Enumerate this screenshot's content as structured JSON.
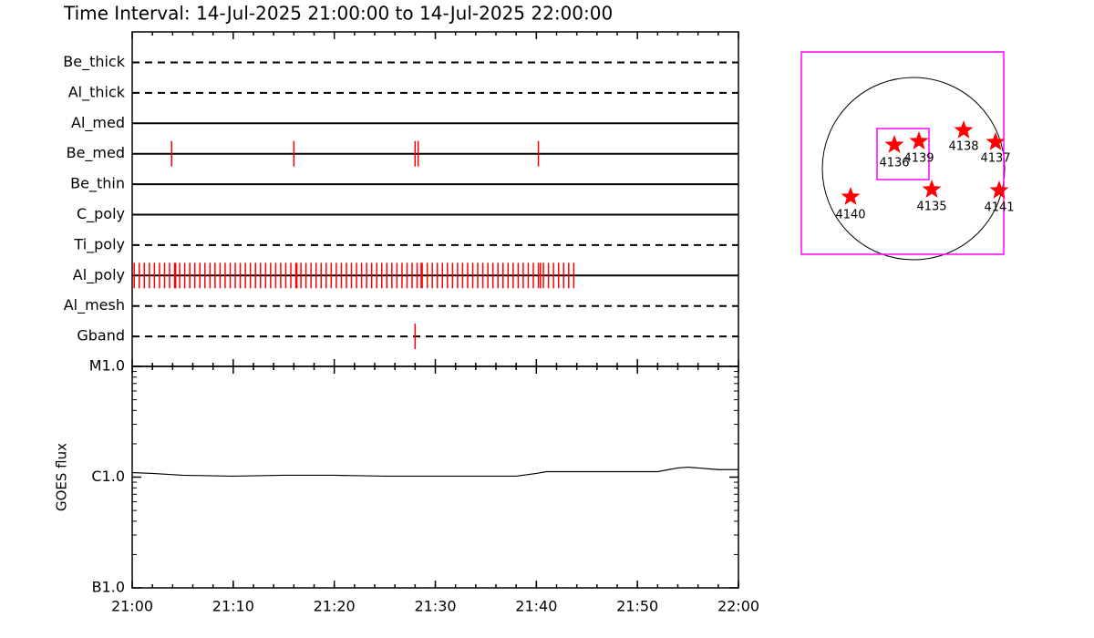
{
  "chart_data": [
    {
      "type": "timeline",
      "title": "Time Interval: 14-Jul-2025 21:00:00 to 14-Jul-2025 22:00:00",
      "color": "#ff0000",
      "xlim": [
        0,
        60
      ],
      "rows": [
        {
          "name": "Be_thick",
          "style": "dashed",
          "times": []
        },
        {
          "name": "Al_thick",
          "style": "dashed",
          "times": []
        },
        {
          "name": "Al_med",
          "style": "solid",
          "times": []
        },
        {
          "name": "Be_med",
          "style": "solid",
          "times": [
            3.9,
            16.0,
            28.0,
            28.3,
            40.2
          ]
        },
        {
          "name": "Be_thin",
          "style": "solid",
          "times": []
        },
        {
          "name": "C_poly",
          "style": "solid",
          "times": []
        },
        {
          "name": "Ti_poly",
          "style": "dashed",
          "times": []
        },
        {
          "name": "Al_poly",
          "style": "solid",
          "times": [
            0.2,
            0.7,
            1.2,
            1.7,
            2.2,
            2.7,
            3.2,
            3.7,
            4.2,
            4.3,
            4.7,
            5.2,
            5.7,
            6.2,
            6.7,
            7.2,
            7.7,
            8.2,
            8.7,
            9.2,
            9.7,
            10.2,
            10.7,
            11.2,
            11.7,
            12.2,
            12.7,
            13.2,
            13.7,
            14.2,
            14.7,
            15.2,
            15.7,
            16.2,
            16.3,
            16.7,
            17.2,
            17.7,
            18.2,
            18.7,
            19.2,
            19.7,
            20.2,
            20.7,
            21.2,
            21.7,
            22.2,
            22.7,
            23.2,
            23.7,
            24.2,
            24.7,
            25.2,
            25.7,
            26.2,
            26.7,
            27.2,
            27.7,
            28.2,
            28.6,
            28.7,
            29.2,
            29.7,
            30.2,
            30.7,
            31.2,
            31.7,
            32.2,
            32.7,
            33.2,
            33.7,
            34.2,
            34.7,
            35.2,
            35.7,
            36.2,
            36.7,
            37.2,
            37.7,
            38.2,
            38.7,
            39.2,
            39.7,
            40.2,
            40.4,
            40.7,
            41.2,
            41.7,
            42.2,
            42.7,
            43.2,
            43.7
          ]
        },
        {
          "name": "Al_mesh",
          "style": "dashed",
          "times": []
        },
        {
          "name": "Gband",
          "style": "dashed",
          "times": [
            28.0
          ]
        }
      ]
    },
    {
      "type": "line",
      "ylabel": "GOES flux",
      "color": "#000000",
      "log_y": true,
      "x": [
        0,
        2,
        5,
        10,
        15,
        20,
        25,
        30,
        35,
        38,
        40,
        41,
        42,
        45,
        50,
        52,
        54,
        55,
        56,
        58,
        60
      ],
      "values": [
        1.1e-06,
        1.08e-06,
        1.04e-06,
        1.02e-06,
        1.04e-06,
        1.04e-06,
        1.02e-06,
        1.02e-06,
        1.02e-06,
        1.02e-06,
        1.08e-06,
        1.12e-06,
        1.12e-06,
        1.12e-06,
        1.12e-06,
        1.12e-06,
        1.21e-06,
        1.23e-06,
        1.21e-06,
        1.17e-06,
        1.17e-06
      ],
      "xlim": [
        0,
        60
      ],
      "xticks": [
        {
          "value": 0,
          "label": "21:00"
        },
        {
          "value": 10,
          "label": "21:10"
        },
        {
          "value": 20,
          "label": "21:20"
        },
        {
          "value": 30,
          "label": "21:30"
        },
        {
          "value": 40,
          "label": "21:40"
        },
        {
          "value": 50,
          "label": "21:50"
        },
        {
          "value": 60,
          "label": "22:00"
        }
      ],
      "ylim": [
        1e-07,
        1e-05
      ],
      "yticks": [
        {
          "value": 1e-07,
          "label": "B1.0"
        },
        {
          "value": 1e-06,
          "label": "C1.0"
        },
        {
          "value": 1e-05,
          "label": "M1.0"
        }
      ]
    },
    {
      "type": "map",
      "color": "#ff0000",
      "box_color": "#ff00ff",
      "regions": [
        "4136",
        "4139",
        "4138",
        "4137",
        "4140",
        "4135",
        "4141"
      ]
    }
  ]
}
